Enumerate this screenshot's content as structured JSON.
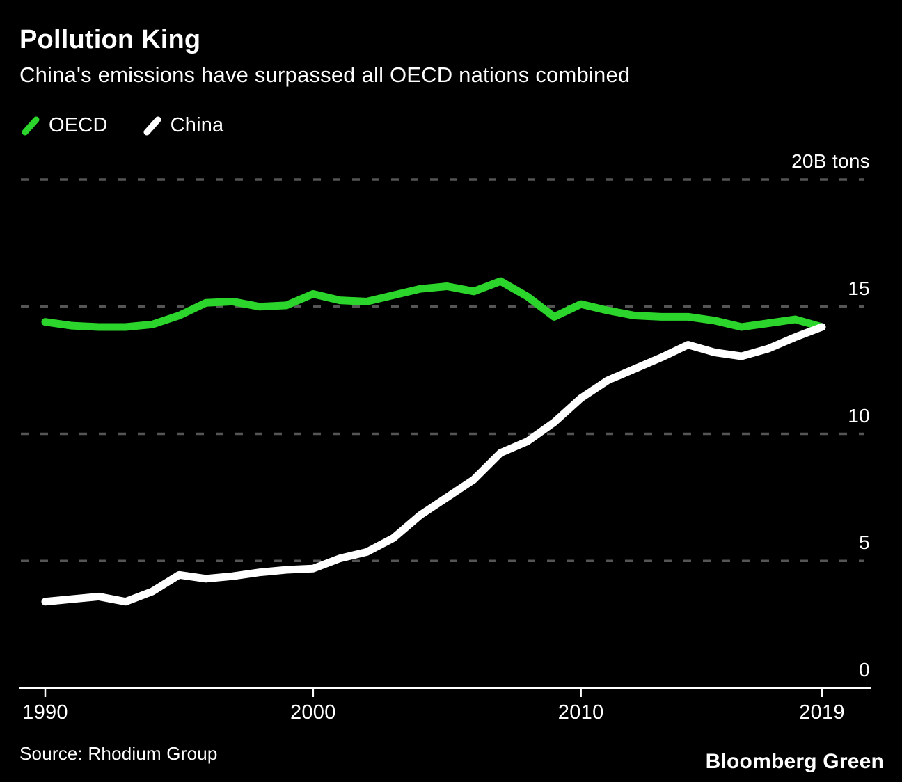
{
  "header": {
    "title": "Pollution King",
    "subtitle": "China's emissions have surpassed all OECD nations combined"
  },
  "legend": {
    "items": [
      {
        "label": "OECD",
        "color": "#2bd52b"
      },
      {
        "label": "China",
        "color": "#ffffff"
      }
    ]
  },
  "footer": {
    "source": "Source: Rhodium Group",
    "brand": "Bloomberg Green"
  },
  "colors": {
    "background": "#000000",
    "text": "#ffffff",
    "gridline": "#555555",
    "oecd_green": "#2bd52b",
    "china_white": "#ffffff"
  },
  "chart_data": {
    "type": "line",
    "title": "Pollution King",
    "subtitle": "China's emissions have surpassed all OECD nations combined",
    "unit": "B tons",
    "xlim": [
      1990,
      2019
    ],
    "ylim": [
      0,
      20
    ],
    "grid": "dashed-horizontal",
    "legend_position": "top-left",
    "x": [
      1990,
      1991,
      1992,
      1993,
      1994,
      1995,
      1996,
      1997,
      1998,
      1999,
      2000,
      2001,
      2002,
      2003,
      2004,
      2005,
      2006,
      2007,
      2008,
      2009,
      2010,
      2011,
      2012,
      2013,
      2014,
      2015,
      2016,
      2017,
      2018,
      2019
    ],
    "series": [
      {
        "name": "OECD",
        "color": "#2bd52b",
        "values": [
          14.4,
          14.25,
          14.2,
          14.2,
          14.3,
          14.65,
          15.15,
          15.2,
          15.0,
          15.05,
          15.5,
          15.25,
          15.2,
          15.45,
          15.7,
          15.8,
          15.6,
          16.0,
          15.4,
          14.6,
          15.1,
          14.85,
          14.65,
          14.6,
          14.6,
          14.45,
          14.2,
          14.35,
          14.5,
          14.2
        ]
      },
      {
        "name": "China",
        "color": "#ffffff",
        "values": [
          3.4,
          3.5,
          3.6,
          3.4,
          3.8,
          4.45,
          4.3,
          4.4,
          4.55,
          4.65,
          4.7,
          5.1,
          5.35,
          5.9,
          6.8,
          7.5,
          8.2,
          9.25,
          9.7,
          10.45,
          11.4,
          12.1,
          12.55,
          13.0,
          13.5,
          13.2,
          13.05,
          13.35,
          13.8,
          14.2
        ]
      }
    ],
    "y_gridlines": [
      {
        "value": 20,
        "label": "20B tons"
      },
      {
        "value": 15,
        "label": "15"
      },
      {
        "value": 10,
        "label": "10"
      },
      {
        "value": 5,
        "label": "5"
      },
      {
        "value": 0,
        "label": "0"
      }
    ],
    "x_ticks": [
      {
        "year": 1990,
        "label": "1990"
      },
      {
        "year": 2000,
        "label": "2000"
      },
      {
        "year": 2010,
        "label": "2010"
      },
      {
        "year": 2019,
        "label": "2019"
      }
    ]
  }
}
